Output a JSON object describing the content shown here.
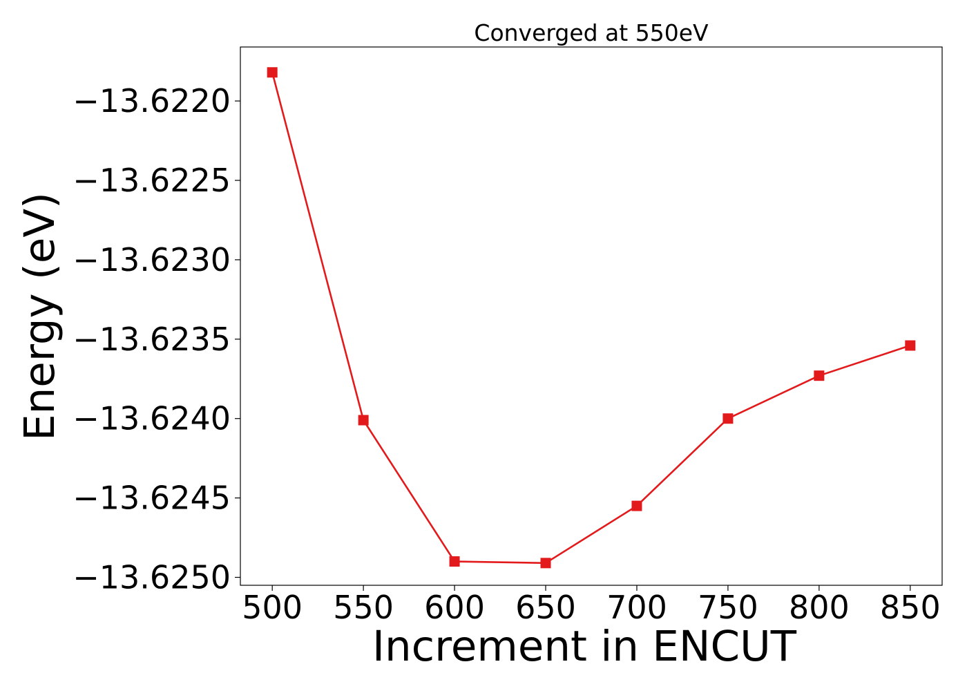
{
  "chart_data": {
    "type": "line",
    "title": "Converged at 550eV",
    "xlabel": "Increment in ENCUT",
    "ylabel": "Energy (eV)",
    "x": [
      500,
      550,
      600,
      650,
      700,
      750,
      800,
      850
    ],
    "series": [
      {
        "values": [
          -13.62182,
          -13.62401,
          -13.6249,
          -13.62491,
          -13.62455,
          -13.624,
          -13.62373,
          -13.62354
        ],
        "color": "#e31a1c",
        "marker": "square"
      }
    ],
    "xticks": [
      500,
      550,
      600,
      650,
      700,
      750,
      800,
      850
    ],
    "xtick_labels": [
      "500",
      "550",
      "600",
      "650",
      "700",
      "750",
      "800",
      "850"
    ],
    "yticks": [
      -13.622,
      -13.6225,
      -13.623,
      -13.6235,
      -13.624,
      -13.6245,
      -13.625
    ],
    "ytick_labels": [
      "−13.6220",
      "−13.6225",
      "−13.6230",
      "−13.6235",
      "−13.6240",
      "−13.6245",
      "−13.6250"
    ],
    "xlim": [
      482.5,
      867.5
    ],
    "ylim": [
      -13.62505,
      -13.62166
    ],
    "grid": false,
    "legend": "none"
  }
}
